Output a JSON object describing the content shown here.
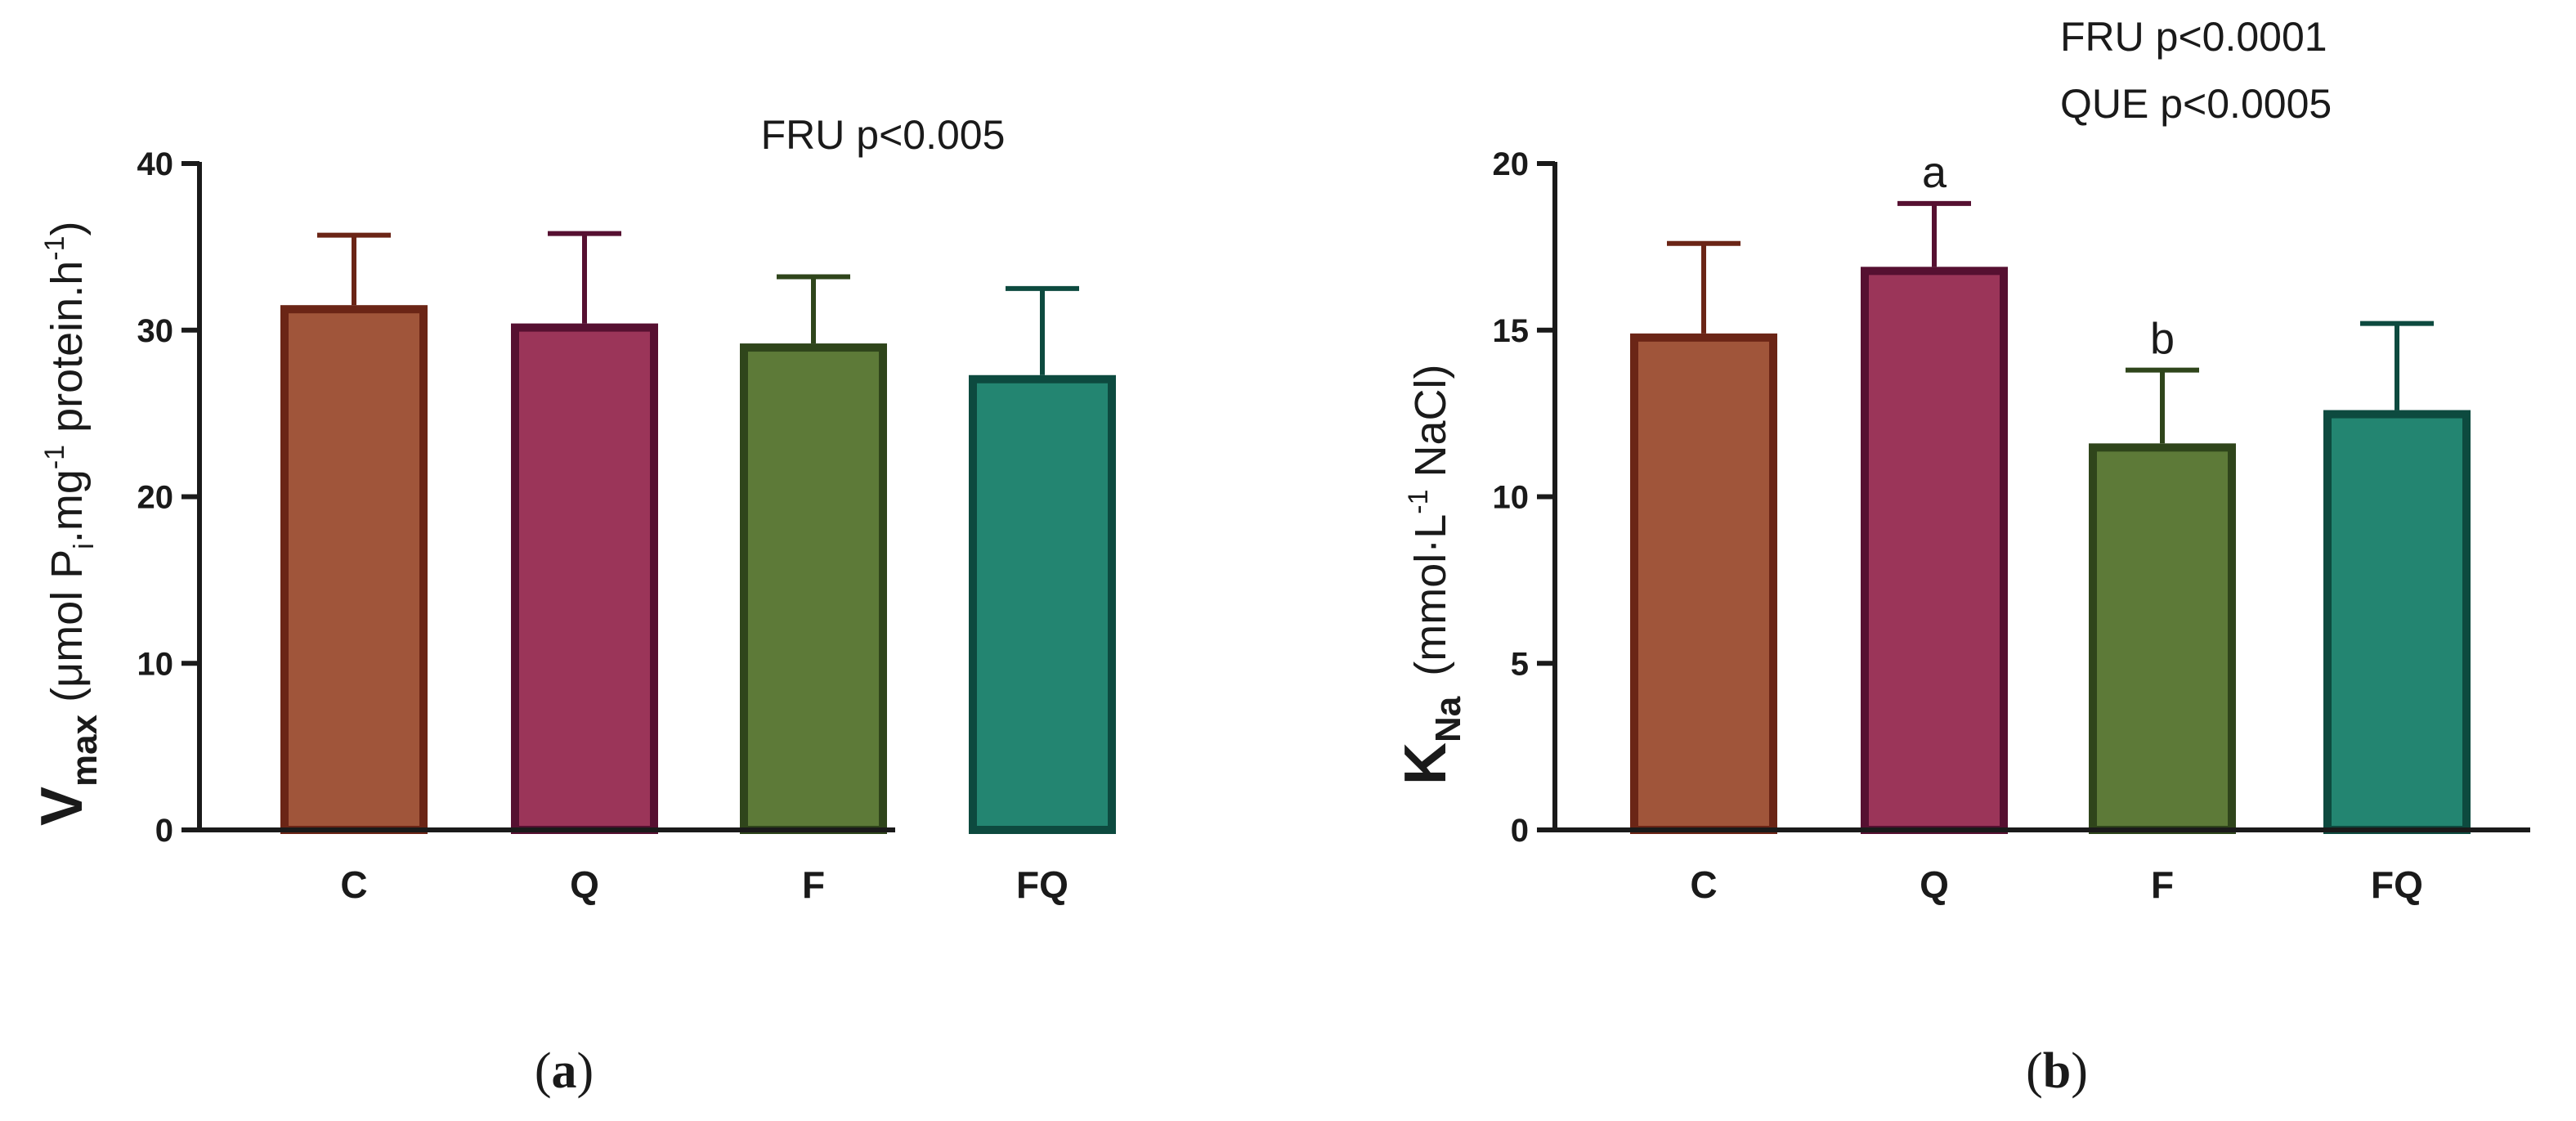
{
  "chart_data": [
    {
      "type": "bar",
      "panel_label": "a",
      "categories": [
        "C",
        "Q",
        "F",
        "FQ"
      ],
      "values": [
        31.5,
        30.4,
        29.2,
        27.3
      ],
      "errors": [
        4.2,
        5.4,
        4.0,
        5.2
      ],
      "ylim": [
        0,
        40
      ],
      "yticks": [
        0,
        10,
        20,
        30,
        40
      ],
      "ylabel": {
        "main": "V",
        "main_sub": "max",
        "unit_a": "(μmol P",
        "unit_a_sub": "i",
        "unit_b": ".mg",
        "unit_b_sup": "-1",
        "unit_c": " protein.h",
        "unit_c_sup": "-1",
        "unit_d": ")"
      },
      "annotations": [
        "FRU p<0.005"
      ],
      "bar_labels": [
        "",
        "",
        "",
        ""
      ]
    },
    {
      "type": "bar",
      "panel_label": "b",
      "categories": [
        "C",
        "Q",
        "F",
        "FQ"
      ],
      "values": [
        14.9,
        16.9,
        11.6,
        12.6
      ],
      "errors": [
        2.7,
        1.9,
        2.2,
        2.6
      ],
      "ylim": [
        0,
        20
      ],
      "yticks": [
        0,
        5,
        10,
        15,
        20
      ],
      "ylabel": {
        "main": "K",
        "main_sub": "Na",
        "unit_a": "(mmol·L",
        "unit_a_sup": "-1",
        "unit_b": " NaCl)"
      },
      "annotations": [
        "FRU p<0.0001",
        "QUE p<0.0005"
      ],
      "bar_labels": [
        "",
        "a",
        "b",
        ""
      ]
    }
  ],
  "colors": {
    "fill": [
      "#a0553a",
      "#9b3559",
      "#5d7a38",
      "#238571"
    ],
    "edge": [
      "#6b2516",
      "#561031",
      "#2f451b",
      "#0d4a3f"
    ],
    "axis": "#1a1a1a"
  }
}
